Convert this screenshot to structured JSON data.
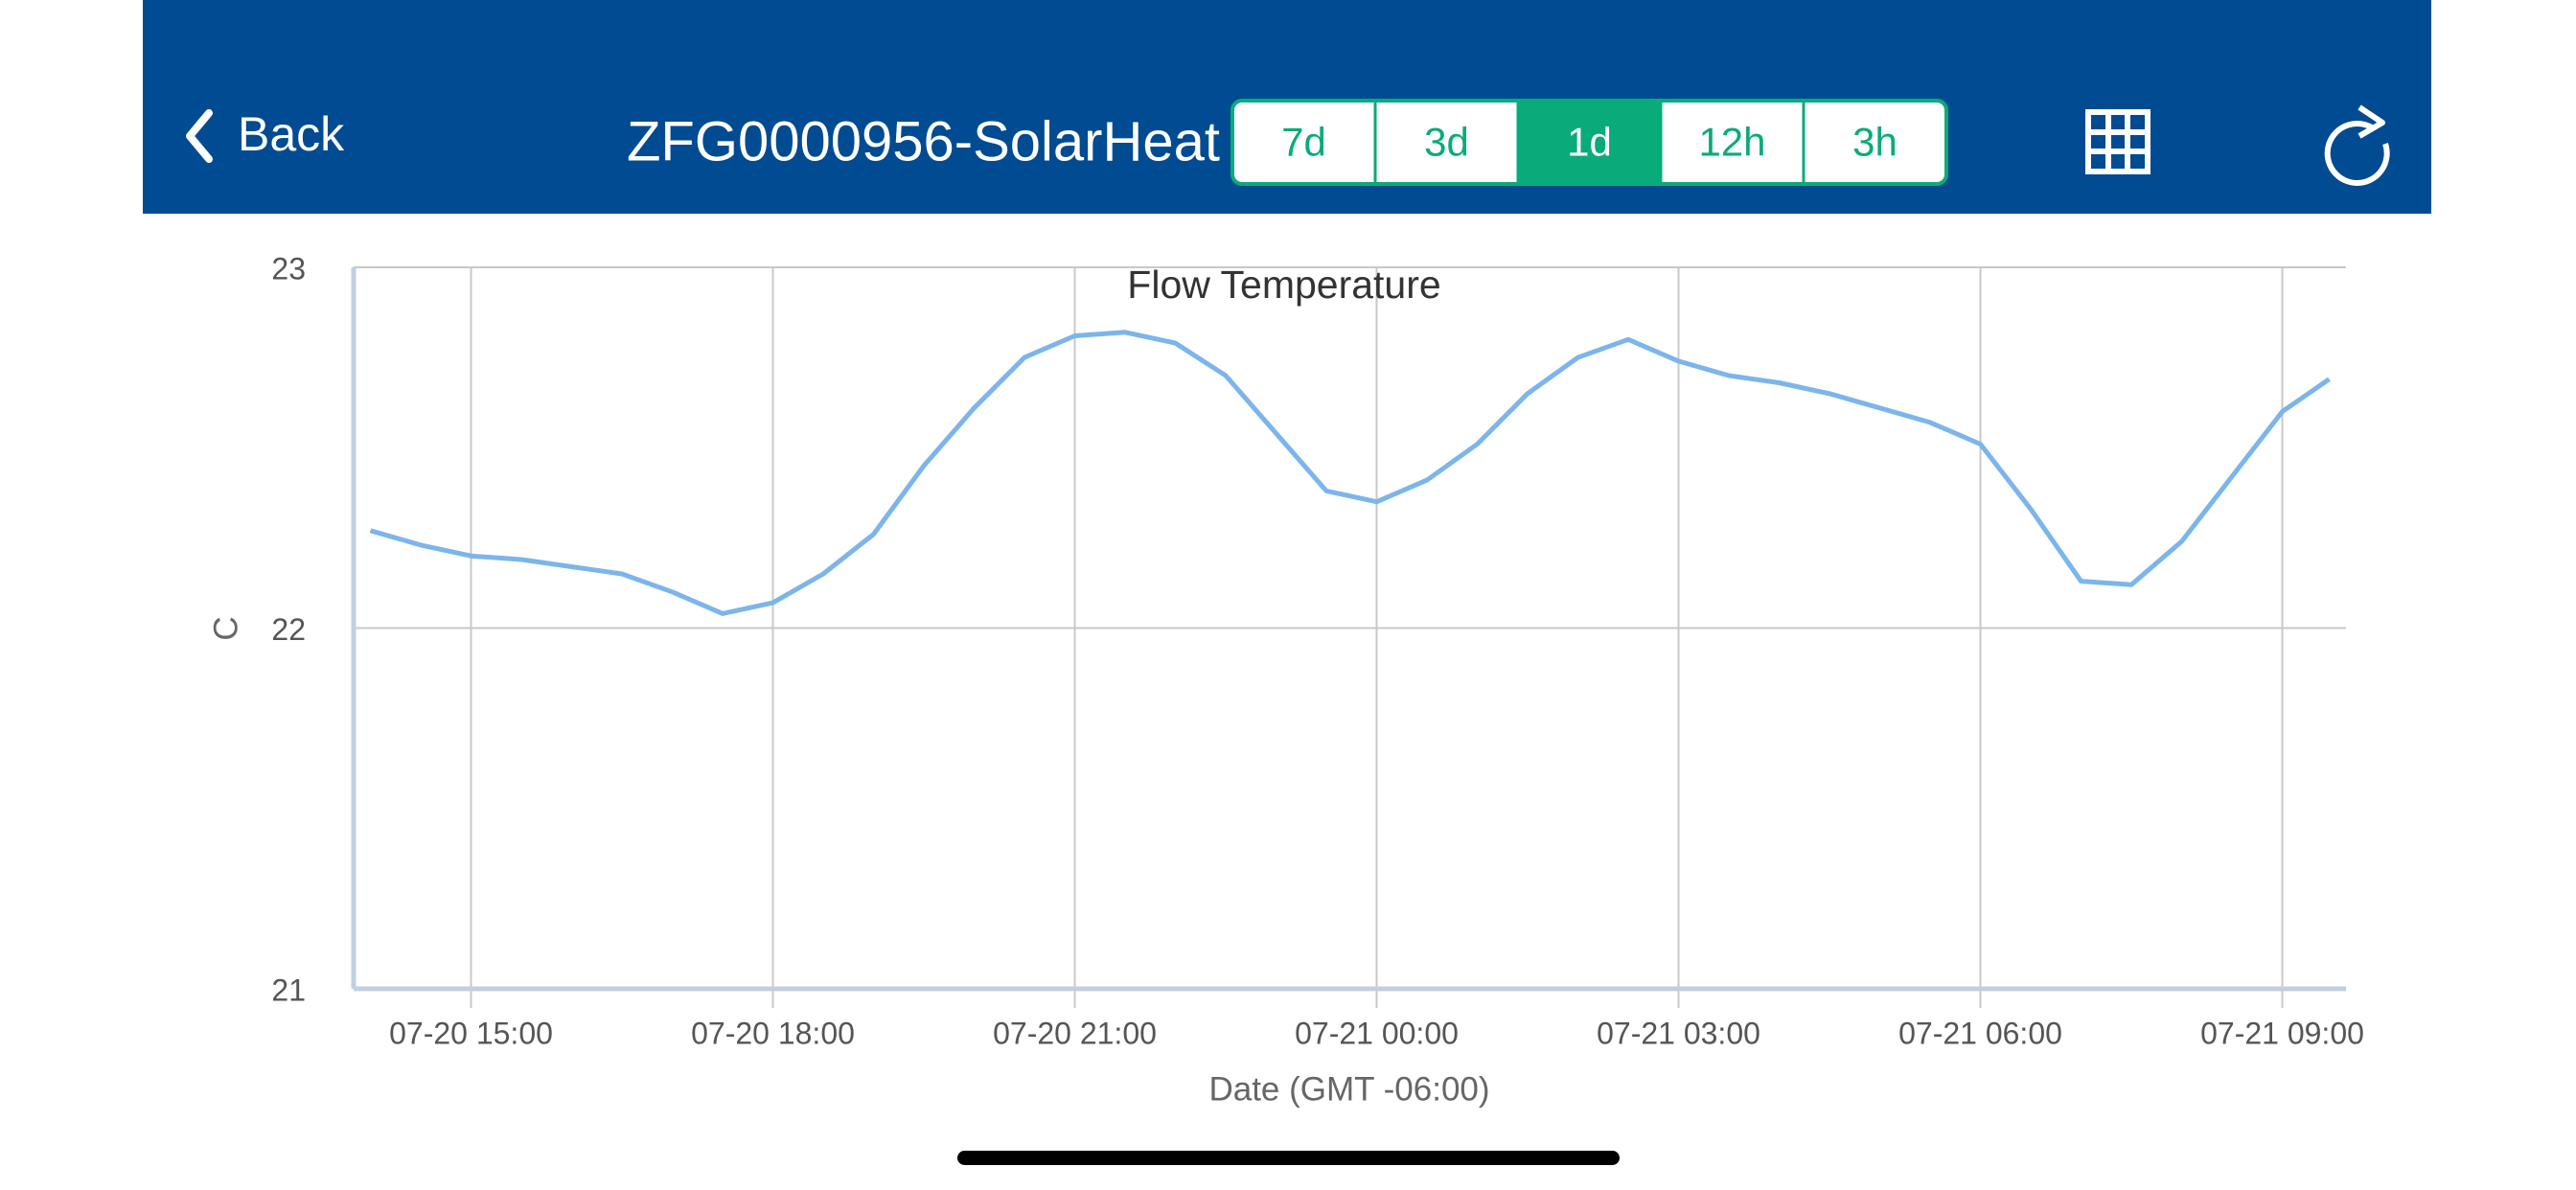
{
  "header": {
    "back": "Back",
    "title": "ZFG0000956-SolarHeat",
    "ranges": [
      "7d",
      "3d",
      "1d",
      "12h",
      "3h"
    ],
    "selected_range": 2
  },
  "chart_data": {
    "type": "line",
    "title": "Flow Temperature",
    "x_label": "Date (GMT -06:00)",
    "y_label": "C",
    "x": [
      "07-20 14:00",
      "07-20 14:30",
      "07-20 15:00",
      "07-20 15:30",
      "07-20 16:00",
      "07-20 16:30",
      "07-20 17:00",
      "07-20 17:30",
      "07-20 18:00",
      "07-20 18:30",
      "07-20 19:00",
      "07-20 19:30",
      "07-20 20:00",
      "07-20 20:30",
      "07-20 21:00",
      "07-20 21:30",
      "07-20 22:00",
      "07-20 22:30",
      "07-20 23:00",
      "07-20 23:30",
      "07-21 00:00",
      "07-21 00:30",
      "07-21 01:00",
      "07-21 01:30",
      "07-21 02:00",
      "07-21 02:30",
      "07-21 03:00",
      "07-21 03:30",
      "07-21 04:00",
      "07-21 04:30",
      "07-21 05:00",
      "07-21 05:30",
      "07-21 06:00",
      "07-21 06:30",
      "07-21 07:00",
      "07-21 07:30",
      "07-21 08:00",
      "07-21 08:30",
      "07-21 09:00",
      "07-21 09:28"
    ],
    "series": [
      {
        "name": "Flow Temperature",
        "color": "#7cb5ec",
        "values": [
          22.27,
          22.23,
          22.2,
          22.19,
          22.17,
          22.15,
          22.1,
          22.04,
          22.07,
          22.15,
          22.26,
          22.45,
          22.61,
          22.75,
          22.81,
          22.82,
          22.79,
          22.7,
          22.54,
          22.38,
          22.35,
          22.41,
          22.51,
          22.65,
          22.75,
          22.8,
          22.74,
          22.7,
          22.68,
          22.65,
          22.61,
          22.57,
          22.51,
          22.33,
          22.13,
          22.12,
          22.24,
          22.42,
          22.6,
          22.69
        ]
      }
    ],
    "xlim": [
      "07-20 13:50",
      "07-21 09:38"
    ],
    "xticks": [
      "07-20 15:00",
      "07-20 18:00",
      "07-20 21:00",
      "07-21 00:00",
      "07-21 03:00",
      "07-21 06:00",
      "07-21 09:00"
    ],
    "ylim": [
      21,
      23
    ],
    "yticks": [
      21,
      22,
      23
    ],
    "grid": true
  }
}
